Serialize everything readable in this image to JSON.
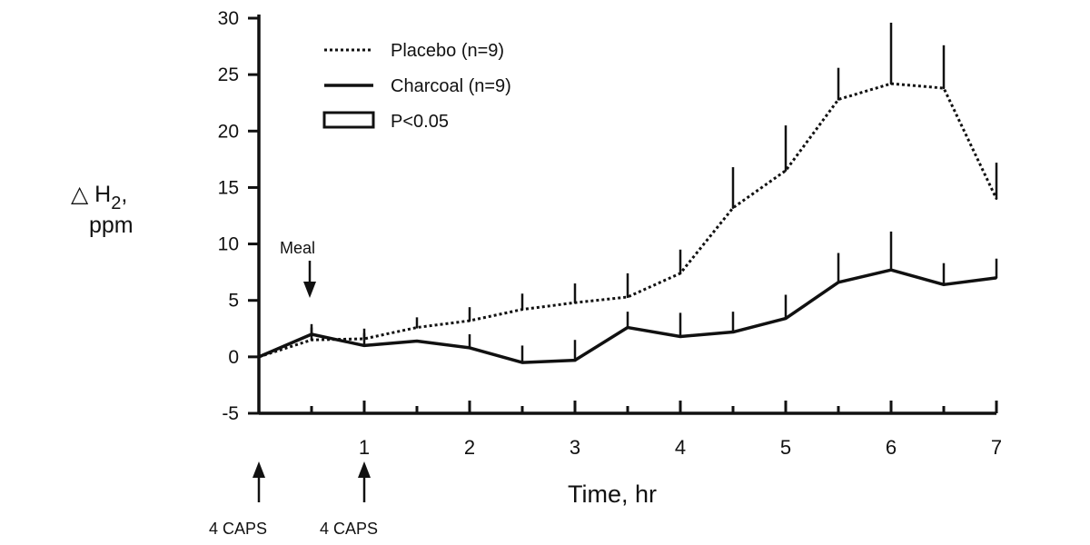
{
  "chart_data": {
    "type": "line",
    "x": [
      0,
      0.5,
      1,
      1.5,
      2,
      2.5,
      3,
      3.5,
      4,
      4.5,
      5,
      5.5,
      6,
      6.5,
      7
    ],
    "series": [
      {
        "name": "Placebo (n=9)",
        "style": "dotted",
        "values": [
          0,
          1.5,
          1.6,
          2.6,
          3.2,
          4.2,
          4.8,
          5.3,
          7.4,
          13.2,
          16.5,
          22.8,
          24.2,
          23.8,
          14.0
        ],
        "error_tops": [
          null,
          2.6,
          2.5,
          3.5,
          4.4,
          5.6,
          6.5,
          7.4,
          9.5,
          16.8,
          20.5,
          25.6,
          29.6,
          27.6,
          17.2
        ]
      },
      {
        "name": "Charcoal (n=9)",
        "style": "solid",
        "values": [
          0,
          2.0,
          1.0,
          1.4,
          0.8,
          -0.5,
          -0.3,
          2.6,
          1.8,
          2.2,
          3.4,
          6.6,
          7.7,
          6.4,
          7.0
        ],
        "error_tops": [
          null,
          2.9,
          2.1,
          null,
          2.0,
          1.0,
          1.5,
          4.0,
          3.9,
          4.0,
          5.5,
          9.2,
          11.1,
          8.3,
          8.7
        ]
      }
    ],
    "legend": [
      {
        "label": "Placebo (n=9)",
        "style": "dotted"
      },
      {
        "label": "Charcoal (n=9)",
        "style": "solid"
      },
      {
        "label": "P<0.05",
        "style": "box"
      }
    ],
    "legend_position": "top-left",
    "xlabel": "Time, hr",
    "ylabel_prefix": "△ H",
    "ylabel_sub": "2",
    "ylabel_suffix": ",",
    "ylabel_line2": "ppm",
    "xlim": [
      0,
      7
    ],
    "ylim": [
      -5,
      30
    ],
    "xticks": [
      1,
      2,
      3,
      4,
      5,
      6,
      7
    ],
    "xtick_labels": [
      "1",
      "2",
      "3",
      "4",
      "5",
      "6",
      "7"
    ],
    "yticks": [
      -5,
      0,
      5,
      10,
      15,
      20,
      25,
      30
    ],
    "ytick_labels": [
      "-5",
      "0",
      "5",
      "10",
      "15",
      "20",
      "25",
      "30"
    ],
    "annotations": {
      "meal": {
        "label": "Meal",
        "x": 0.5
      },
      "caps": [
        {
          "label": "4 CAPS",
          "x": 0
        },
        {
          "label": "4 CAPS",
          "x": 1
        }
      ]
    }
  }
}
